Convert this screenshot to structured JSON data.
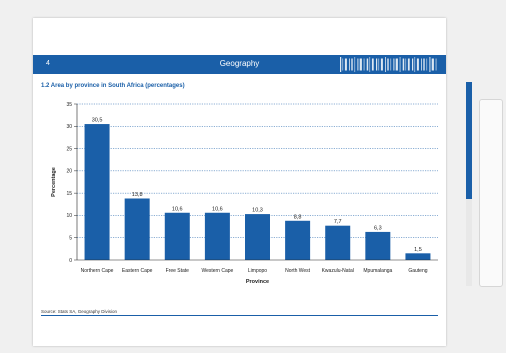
{
  "header": {
    "page_number": "4",
    "title": "Geography"
  },
  "colors": {
    "accent": "#1a5fa8",
    "bar": "#1a5fa8"
  },
  "chart_data": {
    "type": "bar",
    "title": "1.2 Area by province in South Africa (percentages)",
    "xlabel": "Province",
    "ylabel": "Percentage",
    "ylim": [
      0,
      35
    ],
    "yticks": [
      0,
      5,
      10,
      15,
      20,
      25,
      30,
      35
    ],
    "grid": true,
    "categories": [
      "Northern Cape",
      "Eastern Cape",
      "Free State",
      "Western Cape",
      "Limpopo",
      "North West",
      "Kwazulu-Natal",
      "Mpumalanga",
      "Gauteng"
    ],
    "values": [
      30.5,
      13.8,
      10.6,
      10.6,
      10.3,
      8.8,
      7.7,
      6.3,
      1.5
    ],
    "value_labels": [
      "30,5",
      "13,8",
      "10,6",
      "10,6",
      "10,3",
      "8,8",
      "7,7",
      "6,3",
      "1,5"
    ]
  },
  "source": "Source: Stats SA, Geography Division"
}
